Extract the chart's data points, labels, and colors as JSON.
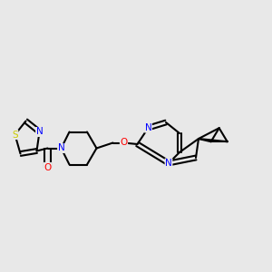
{
  "background_color": "#e8e8e8",
  "bond_color": "#000000",
  "atom_colors": {
    "N": "#0000ff",
    "O": "#ff0000",
    "S": "#cccc00",
    "C": "#000000"
  },
  "line_width": 1.5,
  "font_size": 7.5,
  "fig_width": 3.0,
  "fig_height": 3.0,
  "dpi": 100
}
